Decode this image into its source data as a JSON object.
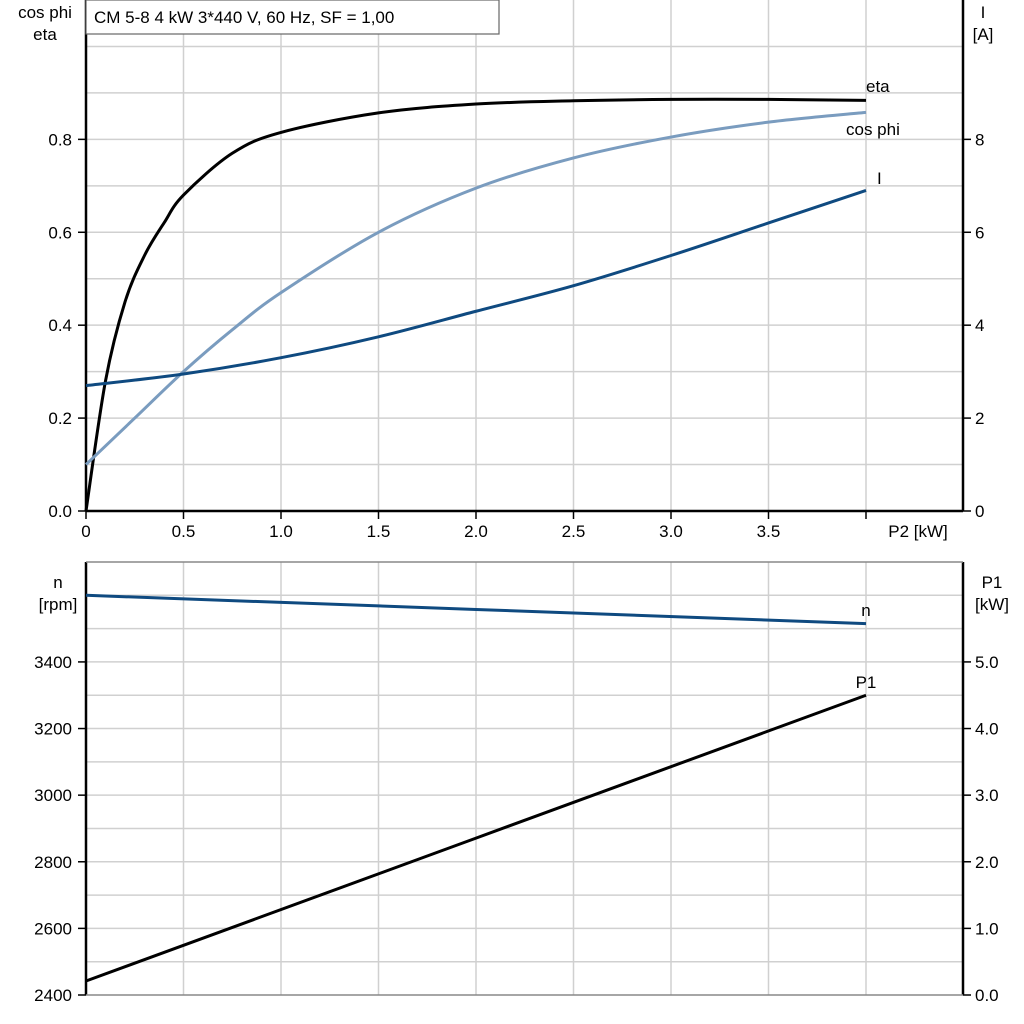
{
  "title": "CM 5-8   4 kW   3*440 V, 60 Hz, SF = 1,00",
  "chart_data": [
    {
      "type": "line",
      "xlabel": "P2 [kW]",
      "xlim": [
        0,
        4.5
      ],
      "xticks": [
        "0",
        "0.5",
        "1.0",
        "1.5",
        "2.0",
        "2.5",
        "3.0",
        "3.5"
      ],
      "ylabel_left": [
        "cos phi",
        "eta"
      ],
      "ylim_left": [
        0,
        1.1
      ],
      "yticks_left": [
        "0.0",
        "0.2",
        "0.4",
        "0.6",
        "0.8"
      ],
      "ylabel_right": [
        "I",
        "[A]"
      ],
      "ylim_right": [
        0,
        11
      ],
      "yticks_right": [
        "0",
        "2",
        "4",
        "6",
        "8"
      ],
      "grid": true,
      "series": [
        {
          "name": "eta",
          "axis": "left",
          "color": "#000000",
          "x": [
            0,
            0.1,
            0.2,
            0.3,
            0.4,
            0.5,
            0.75,
            1.0,
            1.5,
            2.0,
            2.5,
            3.0,
            3.5,
            4.0
          ],
          "y": [
            0,
            0.28,
            0.45,
            0.55,
            0.62,
            0.68,
            0.77,
            0.815,
            0.857,
            0.876,
            0.883,
            0.886,
            0.886,
            0.884
          ]
        },
        {
          "name": "cos phi",
          "axis": "left",
          "color": "#7a9cbf",
          "x": [
            0,
            0.25,
            0.5,
            0.75,
            1.0,
            1.5,
            2.0,
            2.5,
            3.0,
            3.5,
            4.0
          ],
          "y": [
            0.1,
            0.2,
            0.3,
            0.39,
            0.47,
            0.6,
            0.695,
            0.76,
            0.805,
            0.837,
            0.858
          ]
        },
        {
          "name": "I",
          "axis": "right",
          "color": "#0f4a80",
          "x": [
            0,
            0.5,
            1.0,
            1.5,
            2.0,
            2.5,
            3.0,
            3.5,
            4.0
          ],
          "y": [
            2.7,
            2.95,
            3.3,
            3.75,
            4.3,
            4.85,
            5.5,
            6.2,
            6.9
          ]
        }
      ]
    },
    {
      "type": "line",
      "xlim": [
        0,
        4.5
      ],
      "ylabel_left": [
        "n",
        "[rpm]"
      ],
      "ylim_left": [
        2400,
        3700
      ],
      "yticks_left": [
        "2400",
        "2600",
        "2800",
        "3000",
        "3200",
        "3400"
      ],
      "ylabel_right": [
        "P1",
        "[kW]"
      ],
      "ylim_right": [
        0,
        6.5
      ],
      "yticks_right": [
        "0.0",
        "1.0",
        "2.0",
        "3.0",
        "4.0",
        "5.0"
      ],
      "grid": true,
      "series": [
        {
          "name": "n",
          "axis": "left",
          "color": "#0f4a80",
          "x": [
            0,
            4.0
          ],
          "y": [
            3600,
            3515
          ]
        },
        {
          "name": "P1",
          "axis": "right",
          "color": "#000000",
          "x": [
            0,
            4.0
          ],
          "y": [
            0.21,
            4.5
          ]
        }
      ]
    }
  ]
}
